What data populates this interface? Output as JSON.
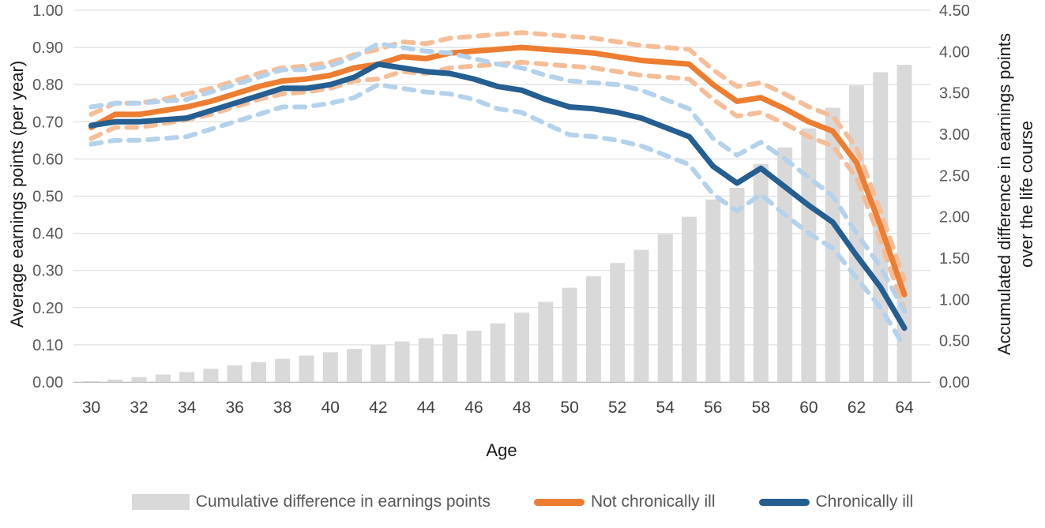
{
  "figure": {
    "xlabel": "Age",
    "left_axis_title": "Average earnings points (per year)",
    "right_axis_title_line1": "Accumulated difference in earnings points",
    "right_axis_title_line2": "over the life course"
  },
  "legend": {
    "items": [
      {
        "label": "Cumulative difference in earnings points",
        "swatch": "bar",
        "color": "#D9D9D9"
      },
      {
        "label": "Not chronically ill",
        "swatch": "line",
        "color": "#ED7D31"
      },
      {
        "label": "Chronically ill",
        "swatch": "line",
        "color": "#255E91"
      }
    ]
  },
  "colors": {
    "bar_fill": "#D9D9D9",
    "orange_line": "#ED7D31",
    "orange_ci": "#F5BE98",
    "blue_line": "#255E91",
    "blue_ci": "#B5D2EC",
    "gridline": "#D9D9D9",
    "axis_line": "#BFBFBF",
    "tick_text": "#595959",
    "x_tick_text": "#404040"
  },
  "chart_data": {
    "type": "combo",
    "title": "",
    "xlabel": "Age",
    "x": [
      30,
      31,
      32,
      33,
      34,
      35,
      36,
      37,
      38,
      39,
      40,
      41,
      42,
      43,
      44,
      45,
      46,
      47,
      48,
      49,
      50,
      51,
      52,
      53,
      54,
      55,
      56,
      57,
      58,
      59,
      60,
      61,
      62,
      63,
      64
    ],
    "x_tick_labels": [
      "30",
      "32",
      "34",
      "36",
      "38",
      "40",
      "42",
      "44",
      "46",
      "48",
      "50",
      "52",
      "54",
      "56",
      "58",
      "60",
      "62",
      "64"
    ],
    "grid": true,
    "legend_position": "bottom",
    "left_axis": {
      "label": "Average earnings points (per year)",
      "range": [
        0,
        1.0
      ],
      "tick_step": 0.1,
      "tick_labels": [
        "0.00",
        "0.10",
        "0.20",
        "0.30",
        "0.40",
        "0.50",
        "0.60",
        "0.70",
        "0.80",
        "0.90",
        "1.00"
      ]
    },
    "right_axis": {
      "label": "Accumulated difference in earnings points over the life course",
      "range": [
        0,
        4.5
      ],
      "tick_step": 0.5,
      "tick_labels": [
        "0.00",
        "0.50",
        "1.00",
        "1.50",
        "2.00",
        "2.50",
        "3.00",
        "3.50",
        "4.00",
        "4.50"
      ]
    },
    "series": [
      {
        "name": "Cumulative difference in earnings points",
        "type": "bar",
        "axis": "right",
        "role": "bars",
        "values": [
          0.01,
          0.03,
          0.06,
          0.09,
          0.12,
          0.16,
          0.2,
          0.24,
          0.28,
          0.32,
          0.36,
          0.4,
          0.45,
          0.49,
          0.53,
          0.58,
          0.62,
          0.71,
          0.84,
          0.97,
          1.14,
          1.28,
          1.44,
          1.6,
          1.79,
          2.0,
          2.21,
          2.35,
          2.64,
          2.84,
          3.07,
          3.32,
          3.59,
          3.75,
          3.84
        ]
      },
      {
        "name": "Not chronically ill CI lower",
        "type": "line",
        "axis": "left",
        "role": "ci-lower",
        "dashed": true,
        "parent": "Not chronically ill",
        "values": [
          0.655,
          0.685,
          0.685,
          0.695,
          0.705,
          0.72,
          0.74,
          0.76,
          0.775,
          0.78,
          0.79,
          0.81,
          0.815,
          0.835,
          0.83,
          0.845,
          0.85,
          0.855,
          0.86,
          0.855,
          0.85,
          0.845,
          0.835,
          0.825,
          0.82,
          0.815,
          0.76,
          0.715,
          0.725,
          0.695,
          0.66,
          0.635,
          0.55,
          0.38,
          0.195
        ]
      },
      {
        "name": "Not chronically ill CI upper",
        "type": "line",
        "axis": "left",
        "role": "ci-upper",
        "dashed": true,
        "parent": "Not chronically ill",
        "values": [
          0.72,
          0.75,
          0.75,
          0.76,
          0.775,
          0.79,
          0.81,
          0.83,
          0.845,
          0.85,
          0.86,
          0.88,
          0.895,
          0.915,
          0.91,
          0.925,
          0.93,
          0.935,
          0.94,
          0.935,
          0.93,
          0.925,
          0.915,
          0.905,
          0.9,
          0.895,
          0.84,
          0.795,
          0.805,
          0.775,
          0.74,
          0.715,
          0.63,
          0.46,
          0.275
        ]
      },
      {
        "name": "Not chronically ill",
        "type": "line",
        "axis": "left",
        "role": "main",
        "values": [
          0.685,
          0.72,
          0.72,
          0.73,
          0.74,
          0.755,
          0.775,
          0.795,
          0.81,
          0.815,
          0.825,
          0.845,
          0.855,
          0.875,
          0.87,
          0.885,
          0.89,
          0.895,
          0.9,
          0.895,
          0.89,
          0.885,
          0.875,
          0.865,
          0.86,
          0.855,
          0.8,
          0.755,
          0.765,
          0.735,
          0.7,
          0.675,
          0.59,
          0.42,
          0.235
        ]
      },
      {
        "name": "Chronically ill CI lower",
        "type": "line",
        "axis": "left",
        "role": "ci-lower",
        "dashed": true,
        "parent": "Chronically ill",
        "values": [
          0.64,
          0.65,
          0.65,
          0.655,
          0.66,
          0.68,
          0.7,
          0.72,
          0.74,
          0.74,
          0.75,
          0.765,
          0.8,
          0.79,
          0.78,
          0.775,
          0.76,
          0.735,
          0.725,
          0.695,
          0.665,
          0.66,
          0.65,
          0.635,
          0.61,
          0.585,
          0.505,
          0.46,
          0.505,
          0.45,
          0.4,
          0.36,
          0.28,
          0.2,
          0.095
        ]
      },
      {
        "name": "Chronically ill CI upper",
        "type": "line",
        "axis": "left",
        "role": "ci-upper",
        "dashed": true,
        "parent": "Chronically ill",
        "values": [
          0.74,
          0.75,
          0.75,
          0.755,
          0.76,
          0.78,
          0.8,
          0.82,
          0.84,
          0.84,
          0.85,
          0.875,
          0.91,
          0.9,
          0.89,
          0.885,
          0.87,
          0.855,
          0.845,
          0.825,
          0.81,
          0.805,
          0.8,
          0.785,
          0.76,
          0.735,
          0.655,
          0.61,
          0.645,
          0.6,
          0.55,
          0.5,
          0.4,
          0.31,
          0.19
        ]
      },
      {
        "name": "Chronically ill",
        "type": "line",
        "axis": "left",
        "role": "main",
        "values": [
          0.69,
          0.7,
          0.7,
          0.705,
          0.71,
          0.73,
          0.75,
          0.77,
          0.79,
          0.79,
          0.8,
          0.82,
          0.855,
          0.845,
          0.835,
          0.83,
          0.815,
          0.795,
          0.785,
          0.76,
          0.74,
          0.735,
          0.725,
          0.71,
          0.685,
          0.66,
          0.58,
          0.535,
          0.575,
          0.525,
          0.475,
          0.43,
          0.34,
          0.255,
          0.145
        ]
      }
    ]
  }
}
